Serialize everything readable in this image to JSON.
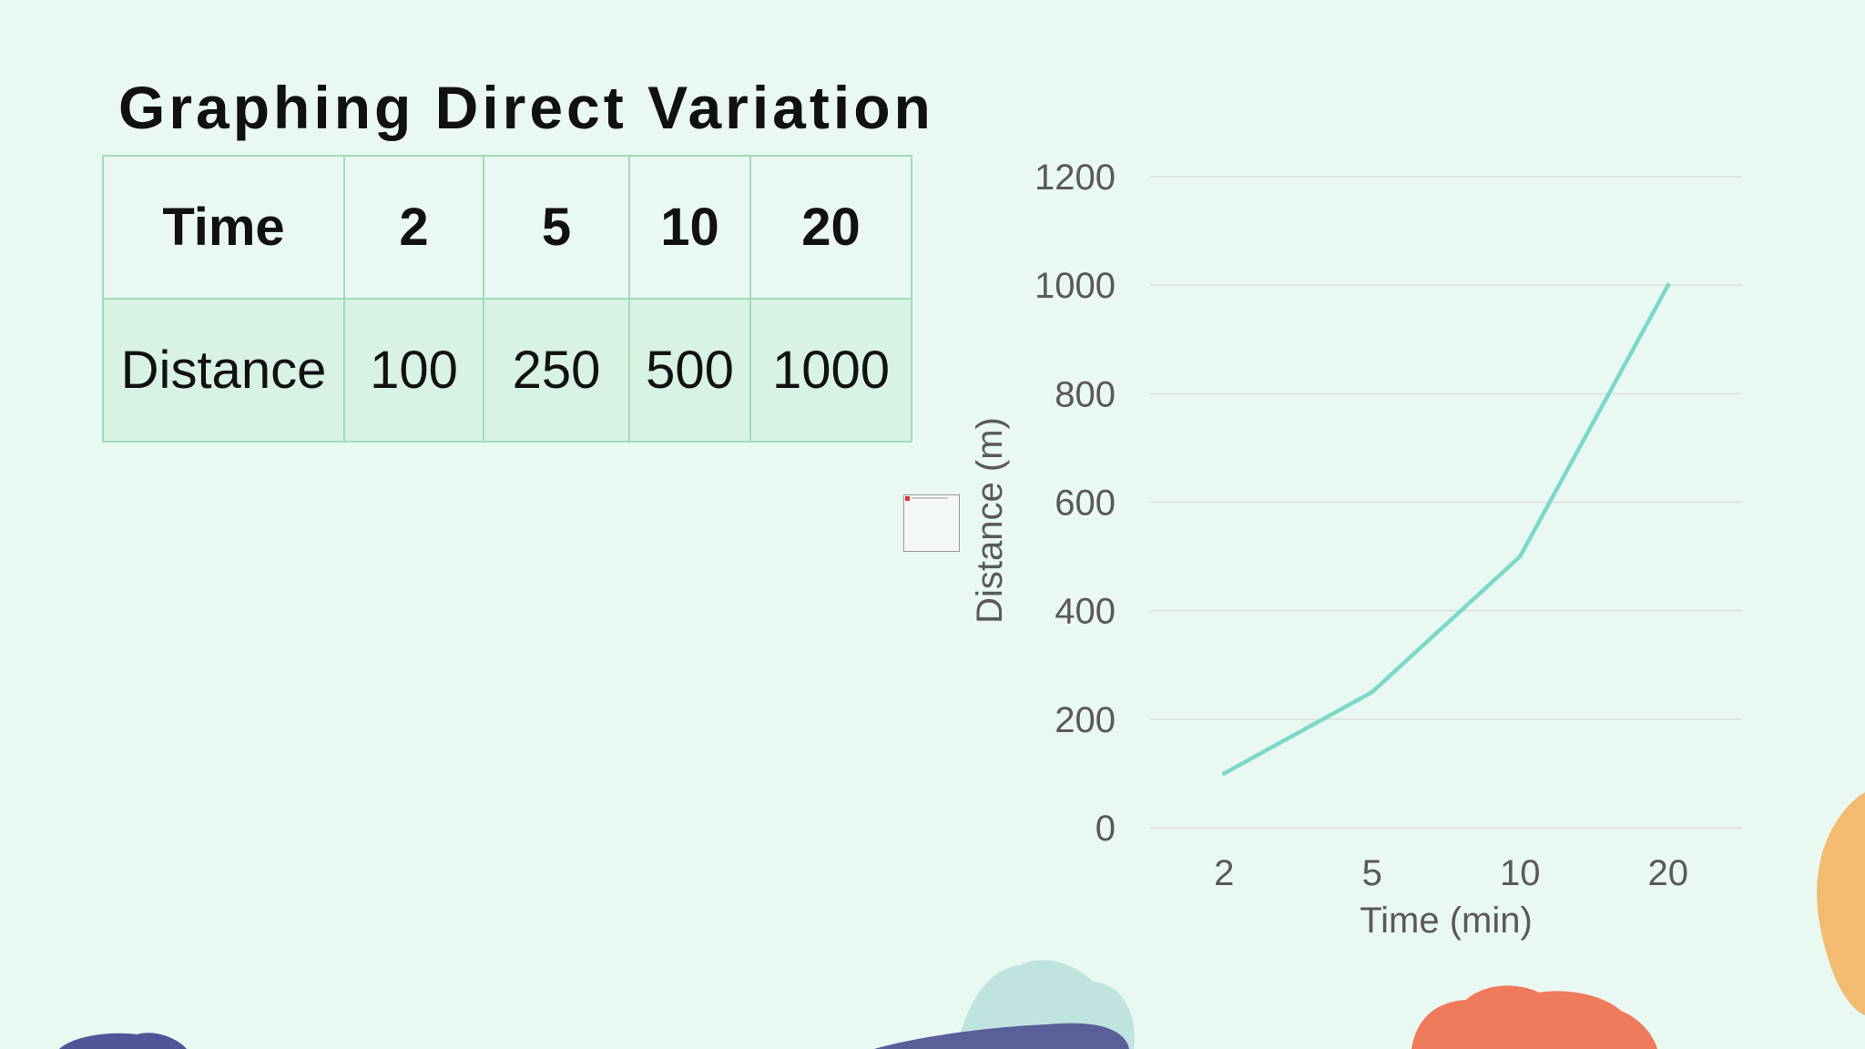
{
  "slide": {
    "title": "Graphing Direct Variation"
  },
  "table": {
    "rows": [
      [
        "Time",
        "2",
        "5",
        "10",
        "20"
      ],
      [
        "Distance",
        "100",
        "250",
        "500",
        "1000"
      ]
    ]
  },
  "colors": {
    "background": "#eaf8f2",
    "table_border": "#9fdcb9",
    "table_body_fill": "#d8f2e4",
    "line": "#7dd9c7",
    "gridline": "#d9dfdc",
    "axis_text": "#595959"
  },
  "chart_data": {
    "type": "line",
    "categories": [
      "2",
      "5",
      "10",
      "20"
    ],
    "series": [
      {
        "values": [
          100,
          250,
          500,
          1000
        ]
      }
    ],
    "xlabel": "Time (min)",
    "ylabel": "Distance (m)",
    "ylim": [
      0,
      1200
    ],
    "yticks": [
      "0",
      "200",
      "400",
      "600",
      "800",
      "1000",
      "1200"
    ],
    "grid": true,
    "legend": "none"
  }
}
